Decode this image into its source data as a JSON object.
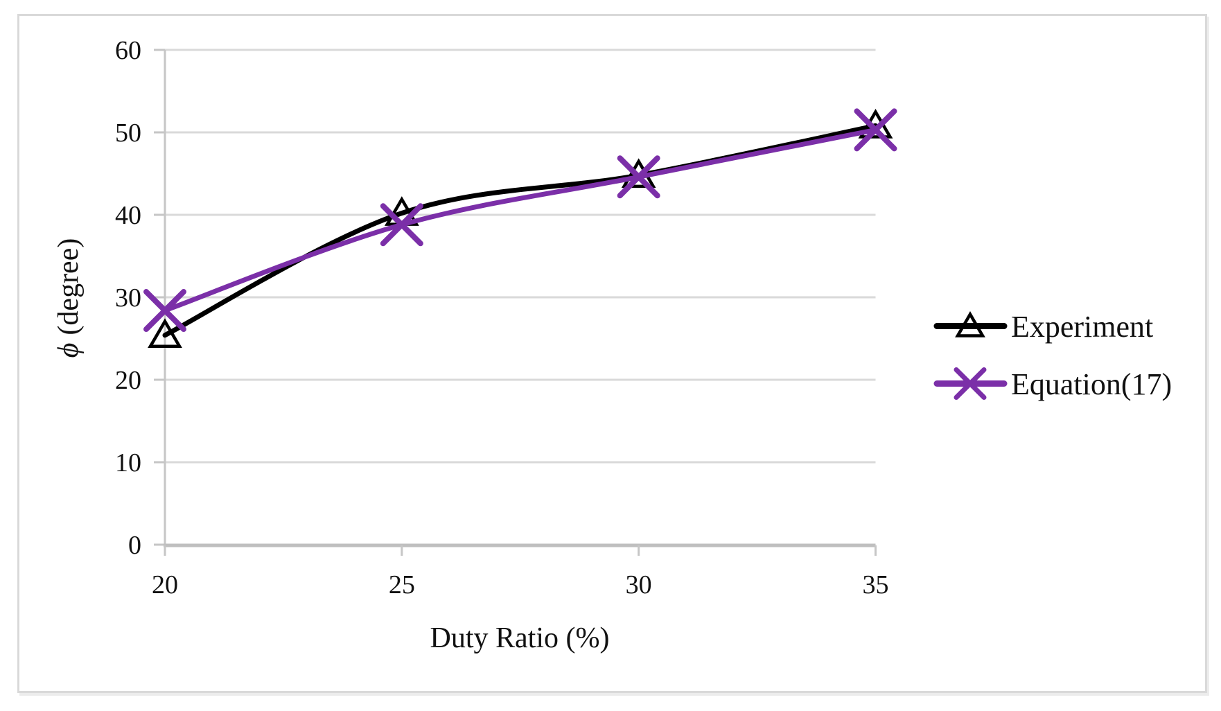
{
  "figure": {
    "background": "#FFFFFF",
    "border_color": "#D9D9D9"
  },
  "chart_data": {
    "type": "line",
    "title": "",
    "xlabel": "Duty Ratio (%)",
    "ylabel": "ϕ (degree)",
    "ylabel_phi": "ϕ",
    "ylabel_rest": "(degree)",
    "x": [
      20,
      25,
      30,
      35
    ],
    "x_ticks": [
      20,
      25,
      30,
      35
    ],
    "y_ticks": [
      0,
      10,
      20,
      30,
      40,
      50,
      60
    ],
    "xlim": [
      20,
      35
    ],
    "ylim": [
      0,
      60
    ],
    "grid": "horizontal",
    "smoothed": true,
    "legend_position": "right",
    "gridline_color": "#D9D9D9",
    "axis_color": "#BFBFBF",
    "tick_color": "#C6C6C6",
    "series": [
      {
        "name": "Experiment",
        "values": [
          25.4,
          40.2,
          44.8,
          50.8
        ],
        "color": "#000000",
        "marker": "triangle-open"
      },
      {
        "name": "Equation(17)",
        "values": [
          28.4,
          38.8,
          44.6,
          50.3
        ],
        "color": "#7B2FA8",
        "marker": "x-cross"
      }
    ]
  }
}
